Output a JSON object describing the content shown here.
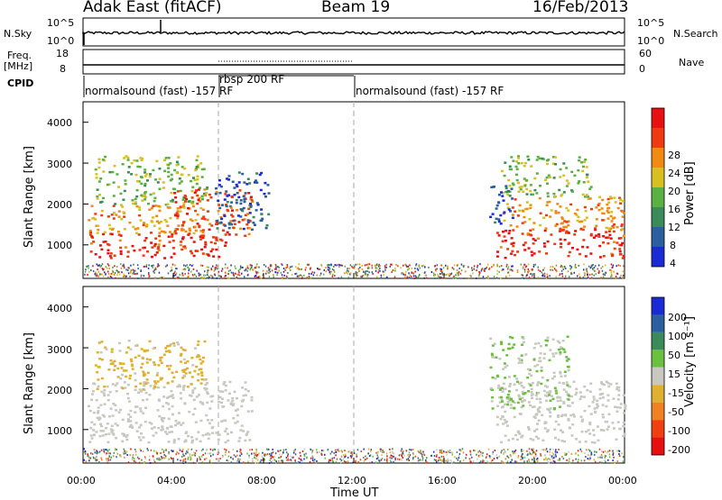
{
  "header": {
    "radar": "Adak East (fitACF)",
    "beam": "Beam 19",
    "date": "16/Feb/2013"
  },
  "noise_panel": {
    "left_label": "N.Sky",
    "right_label": "N.Search",
    "left_ticks": [
      "10^5",
      "10^0"
    ],
    "right_ticks": [
      "10^5",
      "10^0"
    ]
  },
  "freq_panel": {
    "left_label_1": "Freq.",
    "left_label_2": "[MHz]",
    "right_label": "Nave",
    "left_ticks": [
      "18",
      "8"
    ],
    "right_ticks": [
      "60",
      "0"
    ]
  },
  "cpid": {
    "label": "CPID",
    "segments": [
      {
        "text": "normalsound (fast) -157 RF",
        "start_h": 0,
        "end_h": 6
      },
      {
        "text": "rbsp 200 RF",
        "start_h": 6,
        "end_h": 12
      },
      {
        "text": "normalsound (fast) -157 RF",
        "start_h": 12,
        "end_h": 24
      }
    ]
  },
  "power_panel": {
    "ylabel": "Slant Range [km]",
    "yticks": [
      "4000",
      "3000",
      "2000",
      "1000"
    ],
    "colorbar_label": "Power [dB]",
    "colorbar_ticks": [
      "28",
      "24",
      "20",
      "16",
      "12",
      "8",
      "4"
    ],
    "colors": [
      "#1a2bd6",
      "#2a5fa0",
      "#3a8a5a",
      "#5ab040",
      "#d8c020",
      "#f08a10",
      "#f03a10",
      "#e81010"
    ]
  },
  "velocity_panel": {
    "ylabel": "Slant Range [km]",
    "yticks": [
      "4000",
      "3000",
      "2000",
      "1000"
    ],
    "colorbar_label": "Velocity [m s⁻¹]",
    "colorbar_ticks": [
      "200",
      "100",
      "50",
      "15",
      "-15",
      "-50",
      "-100",
      "-200"
    ],
    "colors": [
      "#1a2bd6",
      "#2a5fa0",
      "#3a8a5a",
      "#6cc040",
      "#c8c8c0",
      "#e0b030",
      "#f08020",
      "#f04010",
      "#e81010"
    ]
  },
  "xaxis": {
    "label": "Time UT",
    "ticks": [
      "00:00",
      "04:00",
      "08:00",
      "12:00",
      "16:00",
      "20:00",
      "00:00"
    ]
  },
  "chart_data": {
    "type": "heatmap",
    "x_range_h": [
      0,
      24
    ],
    "y_range_km": [
      180,
      4500
    ],
    "power_range_db": [
      0,
      30
    ],
    "velocity_range": [
      -250,
      250
    ],
    "dashed_lines_h": [
      6,
      12
    ],
    "power_regions": [
      {
        "t0": 0.2,
        "t1": 6.5,
        "r0": 700,
        "r1": 1300,
        "level": 26
      },
      {
        "t0": 0.2,
        "t1": 5.5,
        "r0": 1300,
        "r1": 2000,
        "level": 20
      },
      {
        "t0": 0.5,
        "t1": 5.5,
        "r0": 2000,
        "r1": 3200,
        "level": 14
      },
      {
        "t0": 4.0,
        "t1": 7.5,
        "r0": 1200,
        "r1": 2400,
        "level": 24
      },
      {
        "t0": 5.8,
        "t1": 8.2,
        "r0": 1400,
        "r1": 2800,
        "level": 5
      },
      {
        "t0": 18.3,
        "t1": 24,
        "r0": 700,
        "r1": 1400,
        "level": 26
      },
      {
        "t0": 18.5,
        "t1": 24,
        "r0": 1400,
        "r1": 2200,
        "level": 20
      },
      {
        "t0": 18.5,
        "t1": 22.5,
        "r0": 2200,
        "r1": 3200,
        "level": 14
      },
      {
        "t0": 18.0,
        "t1": 19.0,
        "r0": 1500,
        "r1": 2500,
        "level": 5
      }
    ],
    "velocity_regions": [
      {
        "t0": 0.2,
        "t1": 7.5,
        "r0": 700,
        "r1": 2200,
        "value": 0
      },
      {
        "t0": 0.5,
        "t1": 5.5,
        "r0": 2000,
        "r1": 3200,
        "value": -40
      },
      {
        "t0": 18.3,
        "t1": 24,
        "r0": 700,
        "r1": 2200,
        "value": 0
      },
      {
        "t0": 18.0,
        "t1": 21.5,
        "r0": 1500,
        "r1": 3300,
        "value": 30
      }
    ],
    "noise_level_log10": 0.5,
    "freq_mhz": 10,
    "nave": 14
  }
}
